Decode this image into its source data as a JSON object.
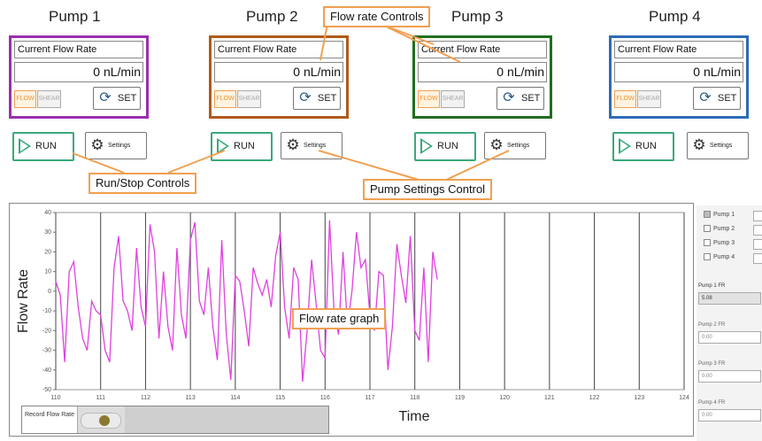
{
  "pumps": [
    {
      "title": "Pump 1",
      "flow_label": "Current Flow Rate",
      "flow_value": "0 nL/min",
      "flow_btn": "FLOW",
      "shear_btn": "SHEAR",
      "set_btn": "SET",
      "run_btn": "RUN",
      "settings_btn": "Settings",
      "color": "#9a2fb0"
    },
    {
      "title": "Pump 2",
      "flow_label": "Current Flow Rate",
      "flow_value": "0 nL/min",
      "flow_btn": "FLOW",
      "shear_btn": "SHEAR",
      "set_btn": "SET",
      "run_btn": "RUN",
      "settings_btn": "Settings",
      "color": "#b05a1a"
    },
    {
      "title": "Pump 3",
      "flow_label": "Current Flow Rate",
      "flow_value": "0 nL/min",
      "flow_btn": "FLOW",
      "shear_btn": "SHEAR",
      "set_btn": "SET",
      "run_btn": "RUN",
      "settings_btn": "Settings",
      "color": "#1f6e1f"
    },
    {
      "title": "Pump 4",
      "flow_label": "Current Flow Rate",
      "flow_value": "0 nL/min",
      "flow_btn": "FLOW",
      "shear_btn": "SHEAR",
      "set_btn": "SET",
      "run_btn": "RUN",
      "settings_btn": "Settings",
      "color": "#2e6bb5"
    }
  ],
  "callouts": {
    "flow_rate_controls": "Flow rate Controls",
    "run_stop_controls": "Run/Stop Controls",
    "pump_settings_control": "Pump Settings Control",
    "flow_rate_graph": "Flow rate graph"
  },
  "legend": {
    "items": [
      {
        "label": "Pump 1",
        "checked": true
      },
      {
        "label": "Pump 2",
        "checked": false
      },
      {
        "label": "Pump 3",
        "checked": false
      },
      {
        "label": "Pump 4",
        "checked": false
      }
    ],
    "fr_readouts": [
      {
        "label": "Pump 1 FR",
        "value": "5.08"
      },
      {
        "label": "Pump 2 FR",
        "value": "0.00"
      },
      {
        "label": "Pump 3 FR",
        "value": "0.00"
      },
      {
        "label": "Pump 4 FR",
        "value": "0.00"
      }
    ]
  },
  "record": {
    "label": "Record Flow Rate"
  },
  "colors": {
    "accent_orange": "#f0a050",
    "run_green": "#3aa97a",
    "series": "#e040e0"
  },
  "chart_data": {
    "type": "line",
    "xlabel": "Time",
    "ylabel": "Flow Rate",
    "xlim": [
      110,
      124
    ],
    "ylim": [
      -50,
      40
    ],
    "x_ticks": [
      110,
      111,
      112,
      113,
      114,
      115,
      116,
      117,
      118,
      119,
      120,
      121,
      122,
      123,
      124
    ],
    "y_ticks": [
      40,
      30,
      20,
      10,
      0,
      -10,
      -20,
      -30,
      -40,
      -50
    ],
    "grid": "vertical",
    "series": [
      {
        "name": "Pump 1",
        "color": "#e040e0",
        "x": [
          110.0,
          110.1,
          110.2,
          110.3,
          110.4,
          110.5,
          110.6,
          110.7,
          110.8,
          110.9,
          111.0,
          111.1,
          111.2,
          111.3,
          111.4,
          111.5,
          111.6,
          111.7,
          111.8,
          111.9,
          112.0,
          112.1,
          112.2,
          112.3,
          112.4,
          112.5,
          112.6,
          112.7,
          112.8,
          112.9,
          113.0,
          113.1,
          113.2,
          113.3,
          113.4,
          113.5,
          113.6,
          113.7,
          113.8,
          113.9,
          114.0,
          114.1,
          114.2,
          114.3,
          114.4,
          114.5,
          114.6,
          114.7,
          114.8,
          114.9,
          115.0,
          115.1,
          115.2,
          115.3,
          115.4,
          115.5,
          115.6,
          115.7,
          115.8,
          115.9,
          116.0,
          116.1,
          116.2,
          116.3,
          116.4,
          116.5,
          116.6,
          116.7,
          116.8,
          116.9,
          117.0,
          117.1,
          117.2,
          117.3,
          117.4,
          117.5,
          117.6,
          117.7,
          117.8,
          117.9,
          118.0,
          118.1,
          118.2,
          118.3,
          118.4,
          118.5
        ],
        "y": [
          5,
          -2,
          -36,
          10,
          15,
          -8,
          -24,
          -30,
          -5,
          -10,
          -12,
          -30,
          -36,
          12,
          28,
          -5,
          -10,
          -20,
          22,
          -8,
          -18,
          34,
          20,
          -24,
          10,
          -18,
          -30,
          22,
          -12,
          -24,
          26,
          35,
          -5,
          -12,
          12,
          -18,
          -35,
          26,
          -22,
          -45,
          8,
          5,
          -10,
          -28,
          12,
          4,
          -2,
          6,
          -8,
          18,
          30,
          -8,
          -24,
          12,
          6,
          -46,
          -20,
          16,
          -6,
          -30,
          -34,
          36,
          -10,
          -22,
          20,
          -18,
          0,
          30,
          12,
          16,
          -12,
          -20,
          10,
          8,
          -40,
          -18,
          24,
          8,
          -6,
          28,
          -20,
          -25,
          12,
          -36,
          20,
          6
        ]
      }
    ]
  }
}
